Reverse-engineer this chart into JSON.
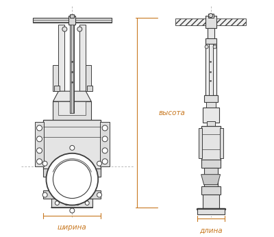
{
  "bg_color": "#ffffff",
  "line_color": "#3a3a3a",
  "dim_color": "#c87820",
  "text_color": "#333333",
  "label_vysota": "высота",
  "label_shirina": "ширина",
  "label_dlina": "длина",
  "fig_width": 4.0,
  "fig_height": 3.46,
  "dpi": 100
}
